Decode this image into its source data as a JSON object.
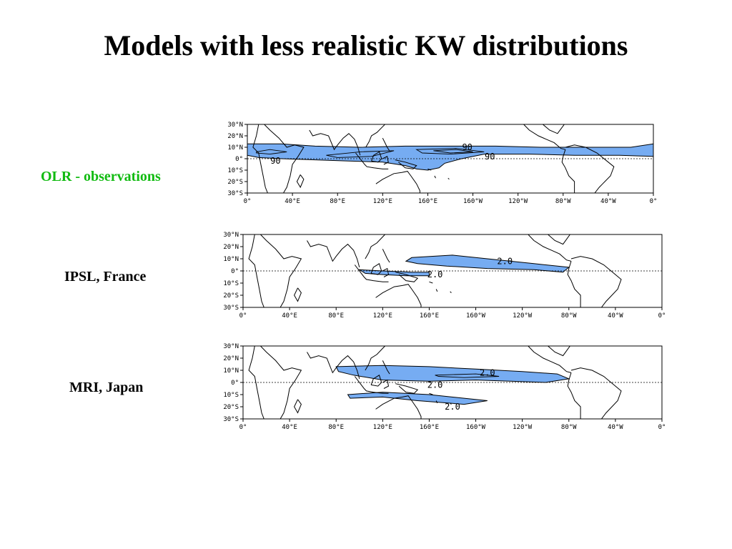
{
  "title": "Models with less realistic KW distributions",
  "colors": {
    "label_obs": "#11bb11",
    "fill": "#76acf2",
    "coast": "#000000"
  },
  "lat_ticks": [
    "30°N",
    "20°N",
    "10°N",
    "0°",
    "10°S",
    "20°S",
    "30°S"
  ],
  "lon_ticks": [
    "0°",
    "40°E",
    "80°E",
    "120°E",
    "160°E",
    "160°W",
    "120°W",
    "80°W",
    "40°W",
    "0°"
  ],
  "panels": [
    {
      "label": "OLR - observations",
      "contour_labels": [
        "90",
        "90",
        "90"
      ]
    },
    {
      "label": "IPSL, France",
      "contour_labels": [
        "2.0",
        "2.0"
      ]
    },
    {
      "label": "MRI, Japan",
      "contour_labels": [
        "2.0",
        "2.0",
        "2.0"
      ]
    }
  ]
}
